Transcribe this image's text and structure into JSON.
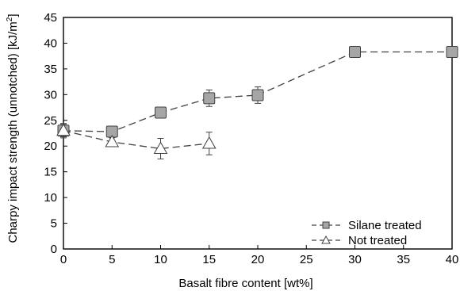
{
  "chart_data": {
    "type": "line",
    "xlabel": "Basalt fibre content [wt%]",
    "ylabel": "Charpy impact strength (unnotched) [kJ/m",
    "ylabel_sup": "2",
    "ylabel_end": "]",
    "xlim": [
      0,
      40
    ],
    "ylim": [
      0,
      45
    ],
    "xticks": [
      0,
      5,
      10,
      15,
      20,
      25,
      30,
      35,
      40
    ],
    "yticks": [
      0,
      5,
      10,
      15,
      20,
      25,
      30,
      35,
      40,
      45
    ],
    "grid": false,
    "legend_position": "bottom-right",
    "series": [
      {
        "name": "Silane treated",
        "marker": "square",
        "line_style": "dashed",
        "x": [
          0,
          5,
          10,
          15,
          20,
          30,
          40
        ],
        "y": [
          23,
          22.8,
          26.5,
          29.3,
          29.9,
          38.3,
          38.3
        ],
        "err": [
          1.2,
          0.8,
          1.0,
          1.6,
          1.6,
          1.0,
          0
        ]
      },
      {
        "name": "Not treated",
        "marker": "triangle",
        "line_style": "dashed",
        "x": [
          0,
          5,
          10,
          15
        ],
        "y": [
          23,
          20.8,
          19.5,
          20.5
        ],
        "err": [
          1.4,
          0.8,
          2.0,
          2.2
        ]
      }
    ],
    "colors": {
      "marker_fill": "#a6a6a6",
      "marker_stroke": "#404040",
      "line": "#404040",
      "axis": "#000000"
    }
  }
}
